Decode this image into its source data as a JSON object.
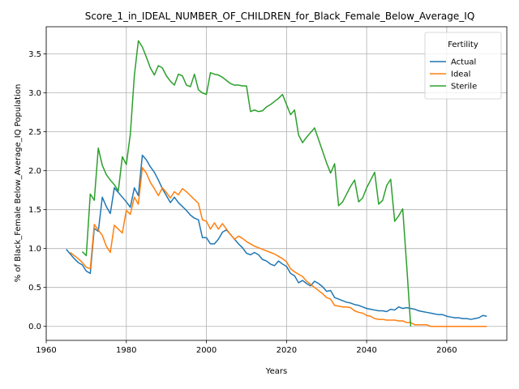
{
  "chart_data": {
    "type": "line",
    "title": "Score_1_in_IDEAL_NUMBER_OF_CHILDREN_for_Black_Female_Below_Average_IQ",
    "xlabel": "Years",
    "ylabel": "% of Black_Female Below_Average_IQ Population",
    "xlim": [
      1960,
      2075
    ],
    "ylim": [
      -0.18,
      3.85
    ],
    "xticks": [
      1960,
      1980,
      2000,
      2020,
      2040,
      2060
    ],
    "yticks": [
      0.0,
      0.5,
      1.0,
      1.5,
      2.0,
      2.5,
      3.0,
      3.5
    ],
    "xtick_labels": [
      "1960",
      "1980",
      "2000",
      "2020",
      "2040",
      "2060"
    ],
    "ytick_labels": [
      "0.0",
      "0.5",
      "1.0",
      "1.5",
      "2.0",
      "2.5",
      "3.0",
      "3.5"
    ],
    "grid": true,
    "legend": {
      "title": "Fertility",
      "position": "top-right"
    },
    "series": [
      {
        "name": "Actual",
        "color": "#1f77b4",
        "points": [
          [
            1965,
            0.99
          ],
          [
            1966,
            0.93
          ],
          [
            1967,
            0.87
          ],
          [
            1968,
            0.82
          ],
          [
            1969,
            0.79
          ],
          [
            1970,
            0.71
          ],
          [
            1971,
            0.68
          ],
          [
            1972,
            1.26
          ],
          [
            1973,
            1.22
          ],
          [
            1974,
            1.66
          ],
          [
            1975,
            1.54
          ],
          [
            1976,
            1.45
          ],
          [
            1977,
            1.78
          ],
          [
            1978,
            1.72
          ],
          [
            1979,
            1.66
          ],
          [
            1980,
            1.6
          ],
          [
            1981,
            1.53
          ],
          [
            1982,
            1.78
          ],
          [
            1983,
            1.68
          ],
          [
            1984,
            2.2
          ],
          [
            1985,
            2.14
          ],
          [
            1986,
            2.05
          ],
          [
            1987,
            1.98
          ],
          [
            1988,
            1.88
          ],
          [
            1989,
            1.77
          ],
          [
            1990,
            1.68
          ],
          [
            1991,
            1.59
          ],
          [
            1992,
            1.66
          ],
          [
            1993,
            1.59
          ],
          [
            1994,
            1.54
          ],
          [
            1995,
            1.49
          ],
          [
            1996,
            1.43
          ],
          [
            1997,
            1.39
          ],
          [
            1998,
            1.37
          ],
          [
            1999,
            1.14
          ],
          [
            2000,
            1.14
          ],
          [
            2001,
            1.06
          ],
          [
            2002,
            1.06
          ],
          [
            2003,
            1.12
          ],
          [
            2004,
            1.21
          ],
          [
            2005,
            1.24
          ],
          [
            2006,
            1.18
          ],
          [
            2007,
            1.12
          ],
          [
            2008,
            1.06
          ],
          [
            2009,
            1.01
          ],
          [
            2010,
            0.94
          ],
          [
            2011,
            0.92
          ],
          [
            2012,
            0.95
          ],
          [
            2013,
            0.92
          ],
          [
            2014,
            0.86
          ],
          [
            2015,
            0.84
          ],
          [
            2016,
            0.8
          ],
          [
            2017,
            0.78
          ],
          [
            2018,
            0.84
          ],
          [
            2019,
            0.8
          ],
          [
            2020,
            0.77
          ],
          [
            2021,
            0.68
          ],
          [
            2022,
            0.65
          ],
          [
            2023,
            0.56
          ],
          [
            2024,
            0.59
          ],
          [
            2025,
            0.55
          ],
          [
            2026,
            0.52
          ],
          [
            2027,
            0.58
          ],
          [
            2028,
            0.55
          ],
          [
            2029,
            0.51
          ],
          [
            2030,
            0.45
          ],
          [
            2031,
            0.46
          ],
          [
            2032,
            0.37
          ],
          [
            2033,
            0.35
          ],
          [
            2034,
            0.33
          ],
          [
            2035,
            0.31
          ],
          [
            2036,
            0.3
          ],
          [
            2037,
            0.28
          ],
          [
            2038,
            0.27
          ],
          [
            2039,
            0.25
          ],
          [
            2040,
            0.23
          ],
          [
            2041,
            0.22
          ],
          [
            2042,
            0.21
          ],
          [
            2043,
            0.2
          ],
          [
            2044,
            0.2
          ],
          [
            2045,
            0.19
          ],
          [
            2046,
            0.22
          ],
          [
            2047,
            0.21
          ],
          [
            2048,
            0.25
          ],
          [
            2049,
            0.23
          ],
          [
            2050,
            0.24
          ],
          [
            2051,
            0.23
          ],
          [
            2052,
            0.22
          ],
          [
            2053,
            0.2
          ],
          [
            2054,
            0.19
          ],
          [
            2055,
            0.18
          ],
          [
            2056,
            0.17
          ],
          [
            2057,
            0.16
          ],
          [
            2058,
            0.15
          ],
          [
            2059,
            0.15
          ],
          [
            2060,
            0.13
          ],
          [
            2061,
            0.12
          ],
          [
            2062,
            0.11
          ],
          [
            2063,
            0.11
          ],
          [
            2064,
            0.1
          ],
          [
            2065,
            0.1
          ],
          [
            2066,
            0.09
          ],
          [
            2067,
            0.1
          ],
          [
            2068,
            0.11
          ],
          [
            2069,
            0.14
          ],
          [
            2070,
            0.13
          ]
        ]
      },
      {
        "name": "Ideal",
        "color": "#ff7f0e",
        "points": [
          [
            1966,
            0.95
          ],
          [
            1967,
            0.91
          ],
          [
            1968,
            0.87
          ],
          [
            1969,
            0.82
          ],
          [
            1970,
            0.76
          ],
          [
            1971,
            0.74
          ],
          [
            1972,
            1.31
          ],
          [
            1973,
            1.24
          ],
          [
            1974,
            1.17
          ],
          [
            1975,
            1.03
          ],
          [
            1976,
            0.95
          ],
          [
            1977,
            1.3
          ],
          [
            1978,
            1.25
          ],
          [
            1979,
            1.2
          ],
          [
            1980,
            1.49
          ],
          [
            1981,
            1.44
          ],
          [
            1982,
            1.66
          ],
          [
            1983,
            1.57
          ],
          [
            1984,
            2.04
          ],
          [
            1985,
            1.97
          ],
          [
            1986,
            1.85
          ],
          [
            1987,
            1.77
          ],
          [
            1988,
            1.68
          ],
          [
            1989,
            1.78
          ],
          [
            1990,
            1.72
          ],
          [
            1991,
            1.65
          ],
          [
            1992,
            1.73
          ],
          [
            1993,
            1.69
          ],
          [
            1994,
            1.77
          ],
          [
            1995,
            1.73
          ],
          [
            1996,
            1.68
          ],
          [
            1997,
            1.63
          ],
          [
            1998,
            1.58
          ],
          [
            1999,
            1.37
          ],
          [
            2000,
            1.35
          ],
          [
            2001,
            1.25
          ],
          [
            2002,
            1.33
          ],
          [
            2003,
            1.25
          ],
          [
            2004,
            1.32
          ],
          [
            2005,
            1.25
          ],
          [
            2006,
            1.18
          ],
          [
            2007,
            1.12
          ],
          [
            2008,
            1.16
          ],
          [
            2009,
            1.13
          ],
          [
            2010,
            1.09
          ],
          [
            2011,
            1.06
          ],
          [
            2012,
            1.03
          ],
          [
            2013,
            1.01
          ],
          [
            2014,
            0.99
          ],
          [
            2015,
            0.97
          ],
          [
            2016,
            0.95
          ],
          [
            2017,
            0.93
          ],
          [
            2018,
            0.9
          ],
          [
            2019,
            0.87
          ],
          [
            2020,
            0.83
          ],
          [
            2021,
            0.74
          ],
          [
            2022,
            0.7
          ],
          [
            2023,
            0.67
          ],
          [
            2024,
            0.64
          ],
          [
            2025,
            0.58
          ],
          [
            2026,
            0.54
          ],
          [
            2027,
            0.5
          ],
          [
            2028,
            0.46
          ],
          [
            2029,
            0.42
          ],
          [
            2030,
            0.37
          ],
          [
            2031,
            0.35
          ],
          [
            2032,
            0.27
          ],
          [
            2033,
            0.26
          ],
          [
            2034,
            0.25
          ],
          [
            2035,
            0.25
          ],
          [
            2036,
            0.24
          ],
          [
            2037,
            0.2
          ],
          [
            2038,
            0.18
          ],
          [
            2039,
            0.17
          ],
          [
            2040,
            0.14
          ],
          [
            2041,
            0.13
          ],
          [
            2042,
            0.1
          ],
          [
            2043,
            0.09
          ],
          [
            2044,
            0.09
          ],
          [
            2045,
            0.08
          ],
          [
            2046,
            0.08
          ],
          [
            2047,
            0.08
          ],
          [
            2048,
            0.07
          ],
          [
            2049,
            0.07
          ],
          [
            2050,
            0.05
          ],
          [
            2051,
            0.05
          ],
          [
            2052,
            0.02
          ],
          [
            2053,
            0.02
          ],
          [
            2054,
            0.02
          ],
          [
            2055,
            0.02
          ],
          [
            2056,
            0.0
          ],
          [
            2058,
            0.0
          ],
          [
            2060,
            0.0
          ],
          [
            2065,
            0.0
          ],
          [
            2070,
            0.0
          ]
        ]
      },
      {
        "name": "Sterile",
        "color": "#2ca02c",
        "points": [
          [
            1969,
            0.96
          ],
          [
            1970,
            0.91
          ],
          [
            1971,
            1.7
          ],
          [
            1972,
            1.62
          ],
          [
            1973,
            2.29
          ],
          [
            1974,
            2.07
          ],
          [
            1975,
            1.95
          ],
          [
            1976,
            1.88
          ],
          [
            1977,
            1.82
          ],
          [
            1978,
            1.74
          ],
          [
            1979,
            2.18
          ],
          [
            1980,
            2.08
          ],
          [
            1981,
            2.47
          ],
          [
            1982,
            3.22
          ],
          [
            1983,
            3.67
          ],
          [
            1984,
            3.59
          ],
          [
            1985,
            3.46
          ],
          [
            1986,
            3.32
          ],
          [
            1987,
            3.23
          ],
          [
            1988,
            3.35
          ],
          [
            1989,
            3.32
          ],
          [
            1990,
            3.22
          ],
          [
            1991,
            3.15
          ],
          [
            1992,
            3.1
          ],
          [
            1993,
            3.24
          ],
          [
            1994,
            3.22
          ],
          [
            1995,
            3.1
          ],
          [
            1996,
            3.08
          ],
          [
            1997,
            3.24
          ],
          [
            1998,
            3.04
          ],
          [
            1999,
            3.0
          ],
          [
            2000,
            2.98
          ],
          [
            2001,
            3.26
          ],
          [
            2002,
            3.24
          ],
          [
            2003,
            3.23
          ],
          [
            2004,
            3.2
          ],
          [
            2005,
            3.16
          ],
          [
            2006,
            3.12
          ],
          [
            2007,
            3.1
          ],
          [
            2008,
            3.1
          ],
          [
            2009,
            3.09
          ],
          [
            2010,
            3.09
          ],
          [
            2011,
            2.76
          ],
          [
            2012,
            2.78
          ],
          [
            2013,
            2.76
          ],
          [
            2014,
            2.77
          ],
          [
            2015,
            2.82
          ],
          [
            2016,
            2.85
          ],
          [
            2017,
            2.89
          ],
          [
            2018,
            2.93
          ],
          [
            2019,
            2.98
          ],
          [
            2020,
            2.85
          ],
          [
            2021,
            2.72
          ],
          [
            2022,
            2.78
          ],
          [
            2023,
            2.46
          ],
          [
            2024,
            2.36
          ],
          [
            2025,
            2.43
          ],
          [
            2026,
            2.49
          ],
          [
            2027,
            2.55
          ],
          [
            2028,
            2.4
          ],
          [
            2029,
            2.25
          ],
          [
            2030,
            2.1
          ],
          [
            2031,
            1.97
          ],
          [
            2032,
            2.09
          ],
          [
            2033,
            1.55
          ],
          [
            2034,
            1.6
          ],
          [
            2035,
            1.7
          ],
          [
            2036,
            1.8
          ],
          [
            2037,
            1.88
          ],
          [
            2038,
            1.6
          ],
          [
            2039,
            1.65
          ],
          [
            2040,
            1.78
          ],
          [
            2041,
            1.88
          ],
          [
            2042,
            1.98
          ],
          [
            2043,
            1.57
          ],
          [
            2044,
            1.62
          ],
          [
            2045,
            1.81
          ],
          [
            2046,
            1.89
          ],
          [
            2047,
            1.35
          ],
          [
            2048,
            1.42
          ],
          [
            2049,
            1.51
          ],
          [
            2050,
            0.78
          ],
          [
            2051,
            0.0
          ]
        ]
      }
    ]
  }
}
